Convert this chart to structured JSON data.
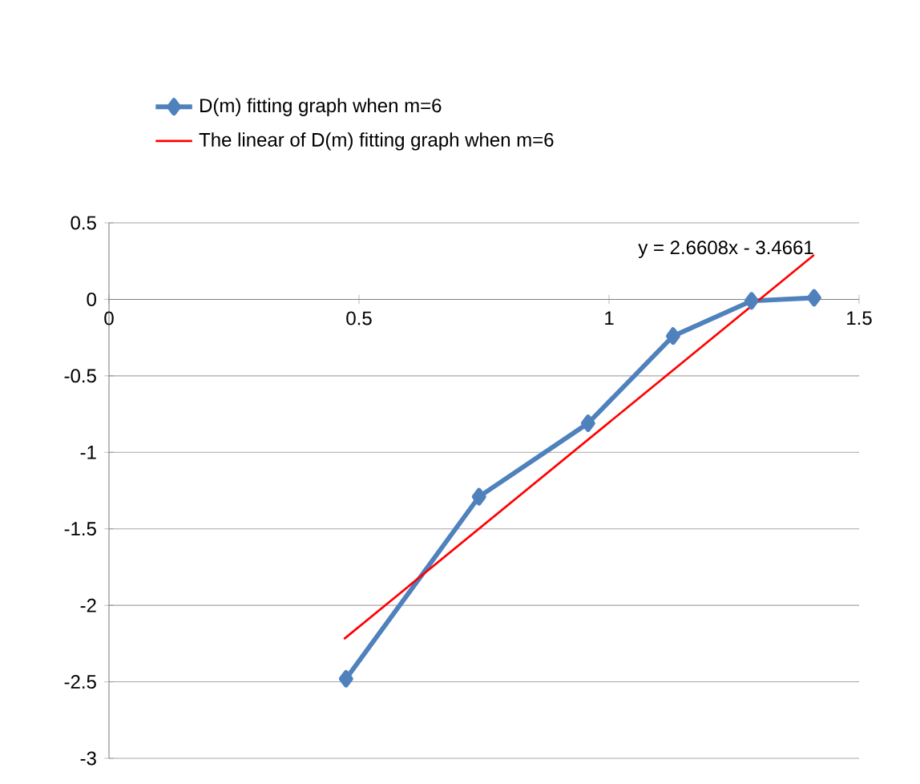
{
  "chart_data": {
    "type": "line",
    "x": [
      0.474,
      0.74,
      0.958,
      1.128,
      1.285,
      1.41
    ],
    "series": [
      {
        "name": "D(m) fitting graph when m=6",
        "color": "#4f81bd",
        "marker": "diamond",
        "values": [
          -2.48,
          -1.29,
          -0.81,
          -0.24,
          -0.01,
          0.01
        ]
      },
      {
        "name": "The linear of D(m) fitting graph when m=6",
        "color": "#ff0000",
        "marker": "none",
        "x": [
          0.47,
          1.41
        ],
        "values": [
          -2.22,
          0.29
        ]
      }
    ],
    "annotations": [
      "y = 2.6608x - 3.4661"
    ],
    "xlim": [
      0,
      1.5
    ],
    "xticks": [
      0,
      0.5,
      1,
      1.5
    ],
    "ylim": [
      -3,
      0.5
    ],
    "yticks": [
      -3,
      -2.5,
      -2,
      -1.5,
      -1,
      -0.5,
      0,
      0.5
    ],
    "grid": "y",
    "legend": "top",
    "line_style": "solid"
  }
}
